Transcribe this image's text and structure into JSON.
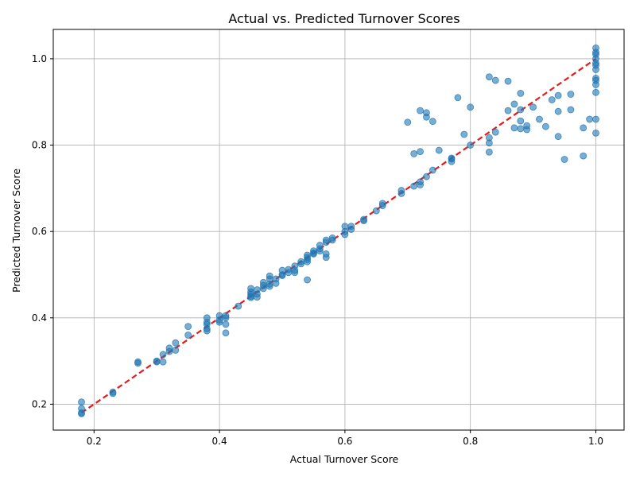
{
  "chart_data": {
    "type": "scatter",
    "title": "Actual vs. Predicted Turnover Scores",
    "xlabel": "Actual Turnover Score",
    "ylabel": "Predicted Turnover Score",
    "xlim": [
      0.135,
      1.045
    ],
    "ylim": [
      0.14,
      1.068
    ],
    "xticks": [
      0.2,
      0.4,
      0.6,
      0.8,
      1.0
    ],
    "xtick_labels": [
      "0.2",
      "0.4",
      "0.6",
      "0.8",
      "1.0"
    ],
    "yticks": [
      0.2,
      0.4,
      0.6,
      0.8,
      1.0
    ],
    "ytick_labels": [
      "0.2",
      "0.4",
      "0.6",
      "0.8",
      "1.0"
    ],
    "grid": true,
    "point_color": "#1f77b4",
    "reference_line": {
      "from": [
        0.18,
        0.18
      ],
      "to": [
        1.0,
        1.0
      ],
      "color": "#e41a1c",
      "style": "dashed"
    },
    "points": [
      [
        0.18,
        0.18
      ],
      [
        0.18,
        0.19
      ],
      [
        0.18,
        0.205
      ],
      [
        0.18,
        0.178
      ],
      [
        0.23,
        0.228
      ],
      [
        0.23,
        0.225
      ],
      [
        0.27,
        0.298
      ],
      [
        0.27,
        0.295
      ],
      [
        0.3,
        0.3
      ],
      [
        0.3,
        0.298
      ],
      [
        0.31,
        0.298
      ],
      [
        0.31,
        0.315
      ],
      [
        0.32,
        0.33
      ],
      [
        0.33,
        0.342
      ],
      [
        0.33,
        0.325
      ],
      [
        0.32,
        0.322
      ],
      [
        0.35,
        0.38
      ],
      [
        0.35,
        0.36
      ],
      [
        0.38,
        0.4
      ],
      [
        0.38,
        0.39
      ],
      [
        0.38,
        0.385
      ],
      [
        0.38,
        0.375
      ],
      [
        0.38,
        0.37
      ],
      [
        0.4,
        0.405
      ],
      [
        0.4,
        0.395
      ],
      [
        0.4,
        0.39
      ],
      [
        0.41,
        0.405
      ],
      [
        0.41,
        0.4
      ],
      [
        0.41,
        0.385
      ],
      [
        0.41,
        0.365
      ],
      [
        0.43,
        0.427
      ],
      [
        0.45,
        0.468
      ],
      [
        0.45,
        0.46
      ],
      [
        0.45,
        0.455
      ],
      [
        0.45,
        0.45
      ],
      [
        0.45,
        0.447
      ],
      [
        0.46,
        0.465
      ],
      [
        0.46,
        0.455
      ],
      [
        0.46,
        0.448
      ],
      [
        0.47,
        0.482
      ],
      [
        0.47,
        0.475
      ],
      [
        0.47,
        0.468
      ],
      [
        0.48,
        0.497
      ],
      [
        0.48,
        0.49
      ],
      [
        0.48,
        0.478
      ],
      [
        0.48,
        0.473
      ],
      [
        0.49,
        0.49
      ],
      [
        0.49,
        0.48
      ],
      [
        0.5,
        0.51
      ],
      [
        0.5,
        0.5
      ],
      [
        0.5,
        0.498
      ],
      [
        0.51,
        0.512
      ],
      [
        0.51,
        0.505
      ],
      [
        0.52,
        0.52
      ],
      [
        0.52,
        0.51
      ],
      [
        0.52,
        0.505
      ],
      [
        0.53,
        0.53
      ],
      [
        0.53,
        0.525
      ],
      [
        0.54,
        0.545
      ],
      [
        0.54,
        0.54
      ],
      [
        0.54,
        0.535
      ],
      [
        0.54,
        0.53
      ],
      [
        0.54,
        0.488
      ],
      [
        0.55,
        0.555
      ],
      [
        0.55,
        0.55
      ],
      [
        0.55,
        0.548
      ],
      [
        0.56,
        0.568
      ],
      [
        0.56,
        0.56
      ],
      [
        0.56,
        0.555
      ],
      [
        0.57,
        0.58
      ],
      [
        0.57,
        0.575
      ],
      [
        0.57,
        0.548
      ],
      [
        0.57,
        0.54
      ],
      [
        0.58,
        0.585
      ],
      [
        0.58,
        0.58
      ],
      [
        0.6,
        0.612
      ],
      [
        0.6,
        0.6
      ],
      [
        0.6,
        0.593
      ],
      [
        0.61,
        0.612
      ],
      [
        0.61,
        0.605
      ],
      [
        0.63,
        0.628
      ],
      [
        0.63,
        0.625
      ],
      [
        0.65,
        0.648
      ],
      [
        0.66,
        0.665
      ],
      [
        0.66,
        0.66
      ],
      [
        0.69,
        0.695
      ],
      [
        0.69,
        0.688
      ],
      [
        0.7,
        0.853
      ],
      [
        0.71,
        0.78
      ],
      [
        0.71,
        0.705
      ],
      [
        0.72,
        0.88
      ],
      [
        0.72,
        0.785
      ],
      [
        0.72,
        0.715
      ],
      [
        0.72,
        0.708
      ],
      [
        0.73,
        0.875
      ],
      [
        0.73,
        0.865
      ],
      [
        0.73,
        0.727
      ],
      [
        0.74,
        0.855
      ],
      [
        0.74,
        0.742
      ],
      [
        0.75,
        0.788
      ],
      [
        0.77,
        0.77
      ],
      [
        0.77,
        0.768
      ],
      [
        0.77,
        0.762
      ],
      [
        0.78,
        0.91
      ],
      [
        0.79,
        0.825
      ],
      [
        0.8,
        0.888
      ],
      [
        0.8,
        0.8
      ],
      [
        0.83,
        0.958
      ],
      [
        0.83,
        0.817
      ],
      [
        0.83,
        0.805
      ],
      [
        0.83,
        0.784
      ],
      [
        0.84,
        0.95
      ],
      [
        0.84,
        0.83
      ],
      [
        0.86,
        0.948
      ],
      [
        0.86,
        0.88
      ],
      [
        0.87,
        0.895
      ],
      [
        0.87,
        0.84
      ],
      [
        0.88,
        0.92
      ],
      [
        0.88,
        0.882
      ],
      [
        0.88,
        0.856
      ],
      [
        0.88,
        0.838
      ],
      [
        0.89,
        0.845
      ],
      [
        0.89,
        0.836
      ],
      [
        0.9,
        0.888
      ],
      [
        0.91,
        0.86
      ],
      [
        0.92,
        0.843
      ],
      [
        0.93,
        0.905
      ],
      [
        0.94,
        0.915
      ],
      [
        0.94,
        0.878
      ],
      [
        0.94,
        0.82
      ],
      [
        0.95,
        0.767
      ],
      [
        0.96,
        0.918
      ],
      [
        0.96,
        0.882
      ],
      [
        0.98,
        0.84
      ],
      [
        0.98,
        0.775
      ],
      [
        0.99,
        0.86
      ],
      [
        1.0,
        1.025
      ],
      [
        1.0,
        1.015
      ],
      [
        1.0,
        1.01
      ],
      [
        1.0,
        1.0
      ],
      [
        1.0,
        0.99
      ],
      [
        1.0,
        0.985
      ],
      [
        1.0,
        0.975
      ],
      [
        1.0,
        0.955
      ],
      [
        1.0,
        0.95
      ],
      [
        1.0,
        0.94
      ],
      [
        1.0,
        0.922
      ],
      [
        1.0,
        0.86
      ],
      [
        1.0,
        0.828
      ]
    ]
  }
}
